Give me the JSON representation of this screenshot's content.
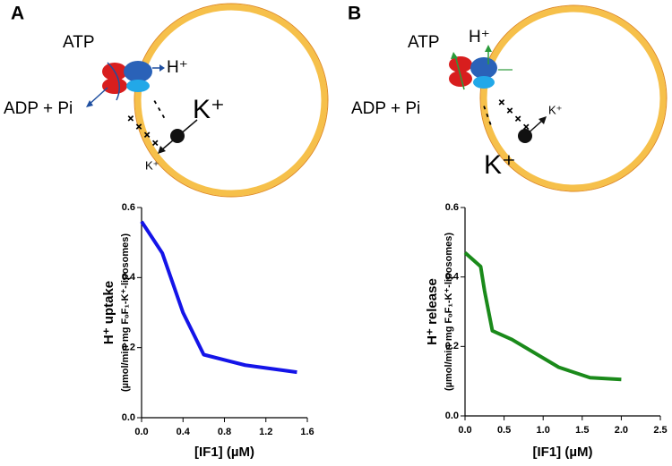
{
  "chart_data": [
    {
      "type": "line",
      "panel_label": "A",
      "diagram_labels": [
        "ATP",
        "H⁺",
        "ADP + Pi",
        "K⁺",
        "K⁺"
      ],
      "charges": [
        "+ + + +",
        "- - -"
      ],
      "y_label": "H⁺ uptake",
      "y_sublabel": "(µmol/min·mg FₒF₁-K⁺-liposomes)",
      "x_label": "[IF1] (µM)",
      "x": [
        0,
        0.2,
        0.4,
        0.6,
        1.0,
        1.5
      ],
      "series": [
        {
          "color": "#1414e8",
          "values": [
            0.56,
            0.47,
            0.3,
            0.18,
            0.15,
            0.13
          ]
        }
      ],
      "xlim": [
        0,
        1.6
      ],
      "xticks": [
        {
          "value": 0,
          "label": "0.0"
        },
        {
          "value": 0.4,
          "label": "0.4"
        },
        {
          "value": 0.8,
          "label": "0.8"
        },
        {
          "value": 1.2,
          "label": "1.2"
        },
        {
          "value": 1.6,
          "label": "1.6"
        }
      ],
      "ylim": [
        0,
        0.6
      ],
      "yticks": [
        {
          "value": 0,
          "label": "0.0"
        },
        {
          "value": 0.2,
          "label": "0.2"
        },
        {
          "value": 0.4,
          "label": "0.4"
        },
        {
          "value": 0.6,
          "label": "0.6"
        }
      ]
    },
    {
      "type": "line",
      "panel_label": "B",
      "diagram_labels": [
        "ATP",
        "H⁺",
        "ADP + Pi",
        "K⁺",
        "K⁺"
      ],
      "charges": [
        "+ + + +",
        "- - -"
      ],
      "y_label": "H⁺ release",
      "y_sublabel": "(µmol/min·mg FₒF₁-K⁺-liposomes)",
      "x_label": "[IF1] (µM)",
      "x": [
        0,
        0.2,
        0.25,
        0.35,
        0.6,
        1.2,
        1.6,
        2.0
      ],
      "series": [
        {
          "color": "#1a8a1a",
          "values": [
            0.47,
            0.43,
            0.36,
            0.245,
            0.22,
            0.14,
            0.11,
            0.105
          ]
        }
      ],
      "xlim": [
        0,
        2.5
      ],
      "xticks": [
        {
          "value": 0,
          "label": "0.0"
        },
        {
          "value": 0.5,
          "label": "0.5"
        },
        {
          "value": 1.0,
          "label": "1.0"
        },
        {
          "value": 1.5,
          "label": "1.5"
        },
        {
          "value": 2.0,
          "label": "2.0"
        },
        {
          "value": 2.5,
          "label": "2.5"
        }
      ],
      "ylim": [
        0,
        0.6
      ],
      "yticks": [
        {
          "value": 0,
          "label": "0.0"
        },
        {
          "value": 0.2,
          "label": "0.2"
        },
        {
          "value": 0.4,
          "label": "0.4"
        },
        {
          "value": 0.6,
          "label": "0.6"
        }
      ]
    }
  ]
}
